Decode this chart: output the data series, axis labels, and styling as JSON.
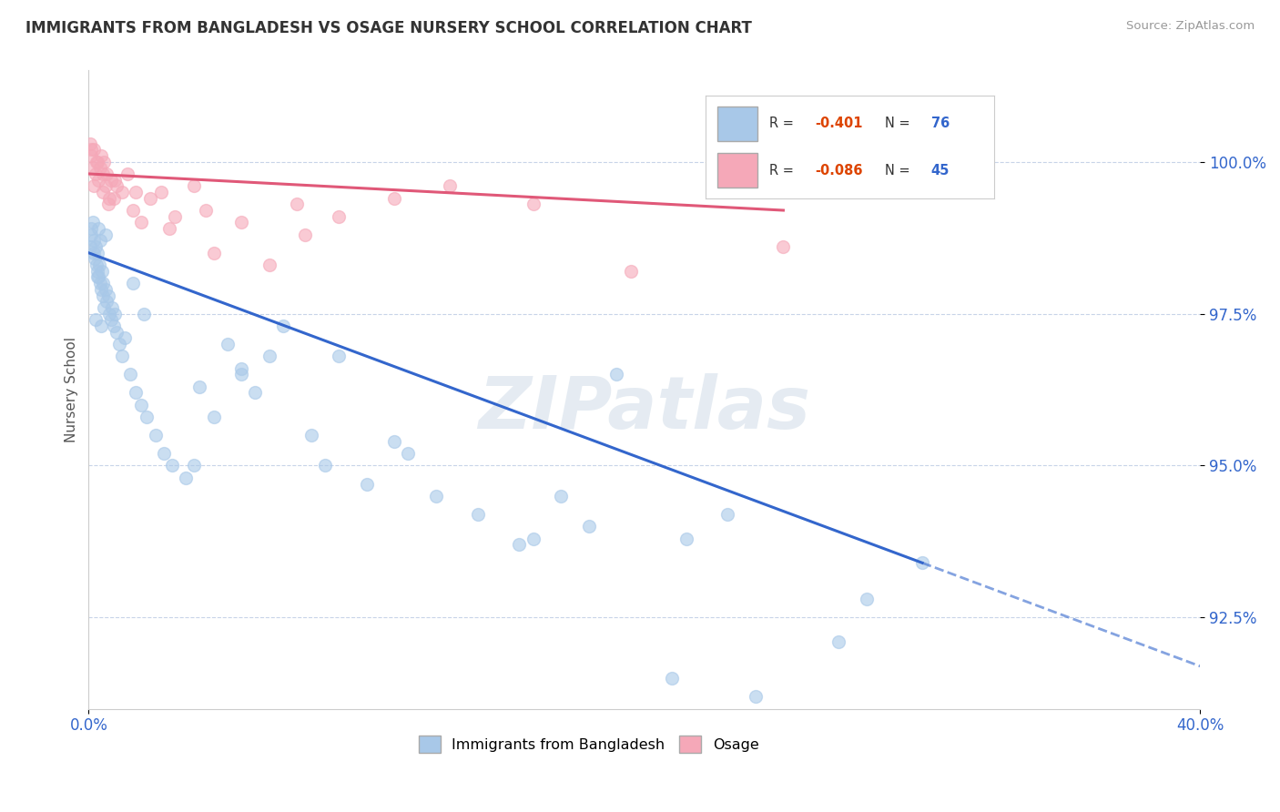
{
  "title": "IMMIGRANTS FROM BANGLADESH VS OSAGE NURSERY SCHOOL CORRELATION CHART",
  "source": "Source: ZipAtlas.com",
  "ylabel": "Nursery School",
  "xlim": [
    0.0,
    40.0
  ],
  "ylim": [
    91.0,
    101.5
  ],
  "yticks": [
    92.5,
    95.0,
    97.5,
    100.0
  ],
  "yticklabels": [
    "92.5%",
    "95.0%",
    "97.5%",
    "100.0%"
  ],
  "legend_R1": "-0.401",
  "legend_N1": "76",
  "legend_R2": "-0.086",
  "legend_N2": "45",
  "blue_color": "#a8c8e8",
  "pink_color": "#f5a8b8",
  "blue_line_color": "#3366cc",
  "pink_line_color": "#e05878",
  "watermark": "ZIPatlas",
  "blue_line_x0": 0.0,
  "blue_line_y0": 98.5,
  "blue_line_x1": 30.0,
  "blue_line_y1": 93.4,
  "blue_line_dash_x0": 30.0,
  "blue_line_dash_y0": 93.4,
  "blue_line_dash_x1": 40.0,
  "blue_line_dash_y1": 91.7,
  "pink_line_x0": 0.0,
  "pink_line_y0": 99.8,
  "pink_line_x1": 25.0,
  "pink_line_y1": 99.2,
  "blue_scatter_x": [
    0.05,
    0.08,
    0.1,
    0.15,
    0.18,
    0.2,
    0.22,
    0.25,
    0.28,
    0.3,
    0.32,
    0.35,
    0.38,
    0.4,
    0.42,
    0.45,
    0.48,
    0.5,
    0.52,
    0.55,
    0.6,
    0.65,
    0.7,
    0.75,
    0.8,
    0.85,
    0.9,
    0.95,
    1.0,
    1.1,
    1.2,
    1.3,
    1.5,
    1.7,
    1.9,
    2.1,
    2.4,
    2.7,
    3.0,
    3.5,
    4.0,
    4.5,
    5.0,
    5.5,
    6.0,
    7.0,
    8.0,
    9.0,
    10.0,
    11.0,
    12.5,
    14.0,
    16.0,
    19.0,
    21.0,
    23.0,
    27.0,
    30.0,
    18.0,
    21.5,
    24.0,
    15.5,
    17.0,
    28.0,
    11.5,
    8.5,
    6.5,
    5.5,
    3.8,
    2.0,
    1.6,
    0.6,
    0.45,
    0.35,
    0.3,
    0.25
  ],
  "blue_scatter_y": [
    98.6,
    98.8,
    98.9,
    99.0,
    98.7,
    98.5,
    98.4,
    98.6,
    98.3,
    98.2,
    98.5,
    98.1,
    98.3,
    98.7,
    98.0,
    97.9,
    98.2,
    98.0,
    97.8,
    97.6,
    97.9,
    97.7,
    97.8,
    97.5,
    97.4,
    97.6,
    97.3,
    97.5,
    97.2,
    97.0,
    96.8,
    97.1,
    96.5,
    96.2,
    96.0,
    95.8,
    95.5,
    95.2,
    95.0,
    94.8,
    96.3,
    95.8,
    97.0,
    96.5,
    96.2,
    97.3,
    95.5,
    96.8,
    94.7,
    95.4,
    94.5,
    94.2,
    93.8,
    96.5,
    91.5,
    94.2,
    92.1,
    93.4,
    94.0,
    93.8,
    91.2,
    93.7,
    94.5,
    92.8,
    95.2,
    95.0,
    96.8,
    96.6,
    95.0,
    97.5,
    98.0,
    98.8,
    97.3,
    98.9,
    98.1,
    97.4
  ],
  "pink_scatter_x": [
    0.05,
    0.1,
    0.15,
    0.2,
    0.25,
    0.3,
    0.35,
    0.4,
    0.45,
    0.5,
    0.55,
    0.6,
    0.65,
    0.7,
    0.8,
    0.9,
    1.0,
    1.2,
    1.4,
    1.6,
    1.9,
    2.2,
    2.6,
    3.1,
    3.8,
    4.5,
    5.5,
    6.5,
    7.5,
    9.0,
    11.0,
    13.0,
    16.0,
    19.5,
    25.0,
    7.8,
    4.2,
    2.9,
    1.7,
    0.95,
    0.75,
    0.5,
    0.28,
    0.18,
    0.08
  ],
  "pink_scatter_y": [
    100.3,
    100.1,
    99.9,
    100.2,
    99.8,
    100.0,
    99.7,
    99.9,
    100.1,
    99.5,
    100.0,
    99.6,
    99.8,
    99.3,
    99.7,
    99.4,
    99.6,
    99.5,
    99.8,
    99.2,
    99.0,
    99.4,
    99.5,
    99.1,
    99.6,
    98.5,
    99.0,
    98.3,
    99.3,
    99.1,
    99.4,
    99.6,
    99.3,
    98.2,
    98.6,
    98.8,
    99.2,
    98.9,
    99.5,
    99.7,
    99.4,
    99.8,
    100.0,
    99.6,
    100.2
  ]
}
